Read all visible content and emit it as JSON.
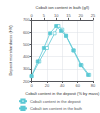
{
  "chart_data": {
    "type": "line",
    "xlabel": "Cobalt content in the deposit (% by mass)",
    "x2label": "Cobalt ion content in bath (g/l)",
    "ylabel": "Deposit microhardness (HV)",
    "xlim": [
      0,
      80
    ],
    "xticks": [
      0,
      20,
      40,
      60,
      80
    ],
    "x2lim": [
      0,
      25
    ],
    "x2ticks": [
      0,
      5,
      10,
      15,
      20,
      25
    ],
    "ylim": [
      200,
      700
    ],
    "yticks": [
      200,
      300,
      400,
      500,
      600,
      700
    ],
    "grid": true,
    "legend": "bottom",
    "series": [
      {
        "name": "Cobalt content in the deposit",
        "color": "#5bc8d4",
        "marker": "open-square",
        "x": [
          0,
          10,
          20,
          30,
          35,
          40,
          45,
          55,
          65,
          75
        ],
        "values": [
          240,
          360,
          470,
          590,
          650,
          620,
          570,
          450,
          330,
          250
        ]
      },
      {
        "name": "Cobalt ion content in the bath",
        "color": "#5bc8d4",
        "marker": "square",
        "axis": "x2",
        "x": [
          0,
          2.5,
          5,
          7.5,
          10,
          12,
          14,
          17,
          20,
          23
        ],
        "values": [
          240,
          360,
          470,
          590,
          650,
          610,
          570,
          450,
          330,
          250
        ]
      }
    ]
  }
}
